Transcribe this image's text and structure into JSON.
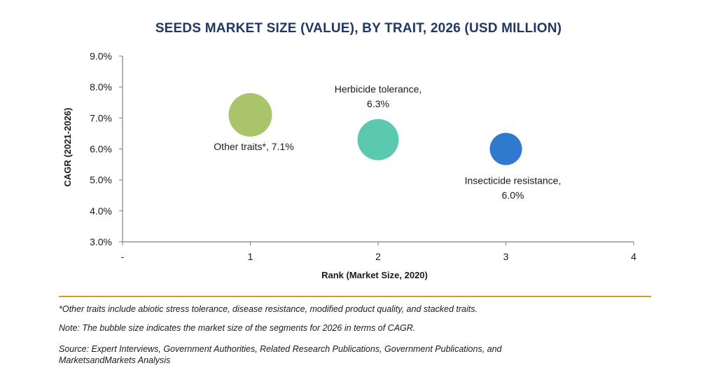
{
  "chart_data": {
    "type": "scatter",
    "title": "SEEDS MARKET SIZE (VALUE), BY TRAIT, 2026 (USD MILLION)",
    "xlabel": "Rank (Market Size, 2020)",
    "ylabel": "CAGR (2021-2026)",
    "xlim": [
      0,
      4
    ],
    "ylim": [
      3.0,
      9.0
    ],
    "x_ticks": [
      "-",
      "1",
      "2",
      "3",
      "4"
    ],
    "y_ticks": [
      "3.0%",
      "4.0%",
      "5.0%",
      "6.0%",
      "7.0%",
      "8.0%",
      "9.0%"
    ],
    "points": [
      {
        "label_line1": "Other traits*, 7.1%",
        "label_line2": "",
        "x": 1,
        "y": 7.1,
        "size": 1.0,
        "color": "#a9c46a",
        "label_pos": "below"
      },
      {
        "label_line1": "Herbicide tolerance,",
        "label_line2": "6.3%",
        "x": 2,
        "y": 6.3,
        "size": 0.9,
        "color": "#5bc8b0",
        "label_pos": "above"
      },
      {
        "label_line1": "Insecticide resistance,",
        "label_line2": "6.0%",
        "x": 3,
        "y": 6.0,
        "size": 0.55,
        "color": "#2f79cf",
        "label_pos": "below-right"
      }
    ],
    "grid": false,
    "legend": "none"
  },
  "footnotes": {
    "other_traits": "*Other traits include abiotic stress tolerance, disease resistance, modified product quality, and stacked traits.",
    "note": "Note: The bubble size indicates the market size of the segments for 2026 in terms of CAGR.",
    "source_line1": "Source: Expert Interviews, Government Authorities, Related Research Publications, Government Publications, and",
    "source_line2": "MarketsandMarkets Analysis"
  },
  "colors": {
    "title": "#1f3864",
    "divider": "#c9a227",
    "axis": "#7f7f7f"
  }
}
